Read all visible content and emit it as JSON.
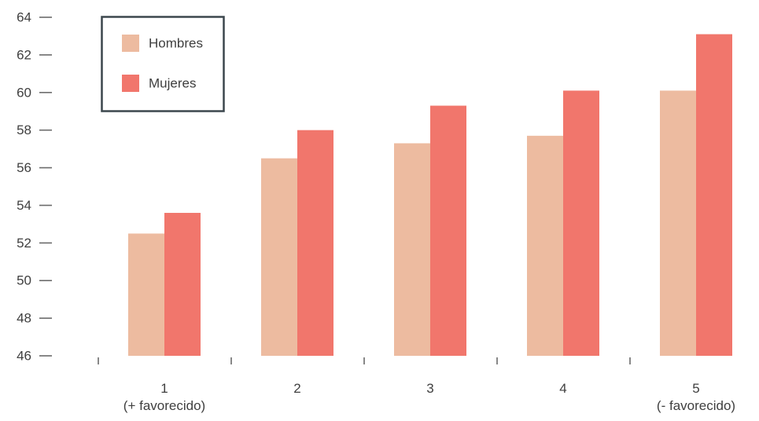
{
  "chart_data": {
    "type": "bar",
    "categories": [
      [
        "1",
        "(+ favorecido)"
      ],
      [
        "2"
      ],
      [
        "3"
      ],
      [
        "4"
      ],
      [
        "5",
        "(- favorecido)"
      ]
    ],
    "series": [
      {
        "name": "Hombres",
        "color": "#edbba0",
        "values": [
          52.5,
          56.5,
          57.3,
          57.7,
          60.1
        ]
      },
      {
        "name": "Mujeres",
        "color": "#f1766c",
        "values": [
          53.6,
          58.0,
          59.3,
          60.1,
          63.1
        ]
      }
    ],
    "ylim": [
      46,
      64
    ],
    "yticks": [
      "46",
      "48",
      "50",
      "52",
      "54",
      "56",
      "58",
      "60",
      "62",
      "64"
    ],
    "title": "",
    "xlabel": "",
    "ylabel": "",
    "legend": {
      "position": "top-left",
      "border_color": "#3c474d"
    },
    "colors": {
      "axis_text": "#3f3f3f",
      "tick": "#6b6b6b"
    }
  }
}
